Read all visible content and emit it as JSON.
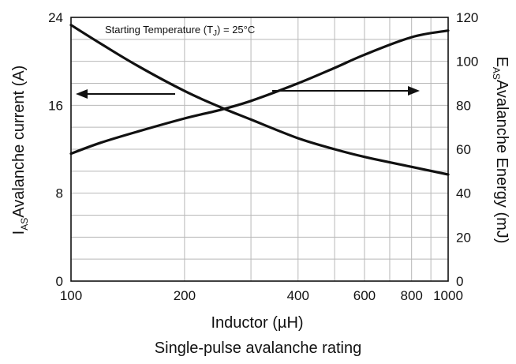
{
  "chart_data": {
    "type": "line",
    "title": "Single-pulse avalanche rating",
    "annotation": {
      "prefix": "Starting Temperature (T",
      "subscript": "J",
      "suffix": ") = 25°C"
    },
    "xlabel": "Inductor (µH)",
    "x_scale": "log",
    "xlim": [
      100,
      1000
    ],
    "x_ticks": [
      100,
      200,
      400,
      600,
      800,
      1000
    ],
    "x_tick_labels": [
      "100",
      "200",
      "400",
      "600",
      "800",
      "1000"
    ],
    "y_left": {
      "label_main": "I",
      "label_sub": "AS",
      "label_rest": "Avalanche current (A)",
      "lim": [
        0,
        24
      ],
      "ticks": [
        0,
        8,
        16,
        24
      ],
      "tick_labels": [
        "0",
        "8",
        "16",
        "24"
      ]
    },
    "y_right": {
      "label_main": "E",
      "label_sub": "AS",
      "label_rest": "Avalanche Energy (mJ)",
      "lim": [
        0,
        120
      ],
      "ticks": [
        0,
        20,
        40,
        60,
        80,
        100,
        120
      ],
      "tick_labels": [
        "0",
        "20",
        "40",
        "60",
        "80",
        "100",
        "120"
      ]
    },
    "grid": true,
    "series": [
      {
        "axis": "left",
        "x": [
          100,
          120,
          150,
          200,
          250,
          300,
          400,
          500,
          600,
          800,
          1000
        ],
        "y": [
          23.3,
          21.6,
          19.6,
          17.3,
          15.8,
          14.7,
          13.0,
          12.0,
          11.3,
          10.4,
          9.7
        ]
      },
      {
        "axis": "right",
        "x": [
          100,
          120,
          150,
          200,
          250,
          300,
          400,
          500,
          600,
          800,
          1000
        ],
        "y": [
          58,
          63,
          68,
          74,
          78,
          82,
          90,
          97,
          103,
          111,
          114
        ]
      }
    ]
  }
}
